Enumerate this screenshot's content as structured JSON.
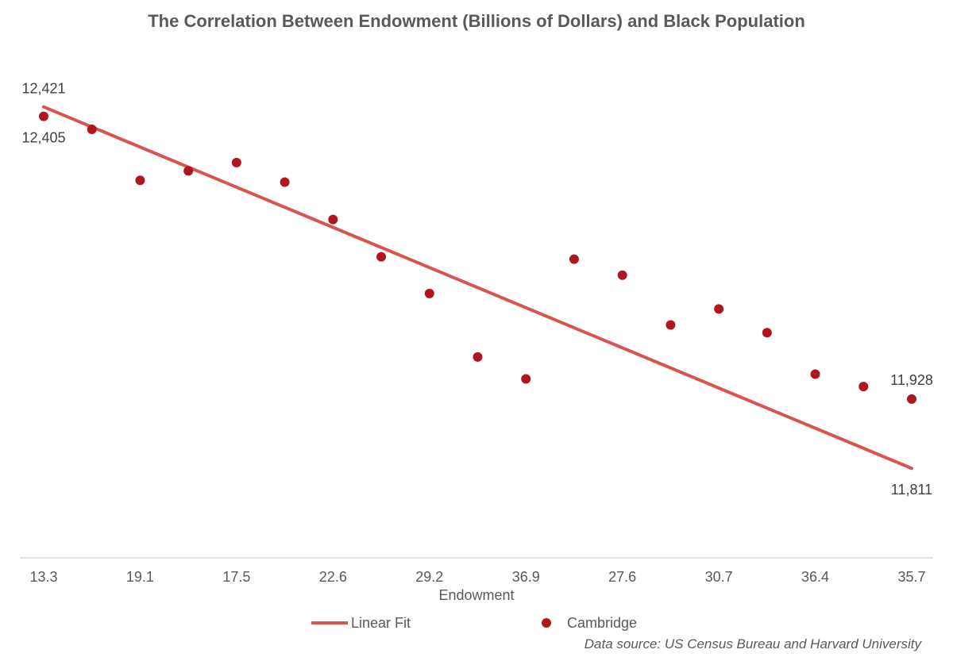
{
  "chart_data": {
    "type": "scatter",
    "title": "The Correlation Between Endowment (Billions of Dollars) and Black Population",
    "xlabel": "Endowment",
    "ylabel": "",
    "x_tick_labels": [
      "13.3",
      "19.1",
      "17.5",
      "22.6",
      "29.2",
      "36.9",
      "27.6",
      "30.7",
      "36.4",
      "35.7"
    ],
    "ylim": [
      11660,
      12442
    ],
    "series": [
      {
        "name": "Cambridge",
        "kind": "scatter",
        "color": "#b0161e",
        "values": [
          12405,
          12383,
          12297,
          12313,
          12327,
          12294,
          12231,
          12168,
          12106,
          11999,
          11962,
          12164,
          12137,
          12053,
          12080,
          12040,
          11970,
          11949,
          11928
        ]
      },
      {
        "name": "Linear Fit",
        "kind": "line",
        "color": "#d9534f",
        "start": 12421,
        "end": 11811
      }
    ],
    "annotations": [
      {
        "text": "12,421",
        "target": "fit-start"
      },
      {
        "text": "12,405",
        "target": "first-point"
      },
      {
        "text": "11,928",
        "target": "last-point"
      },
      {
        "text": "11,811",
        "target": "fit-end"
      }
    ],
    "source": "Data source: US Census Bureau and Harvard University"
  }
}
